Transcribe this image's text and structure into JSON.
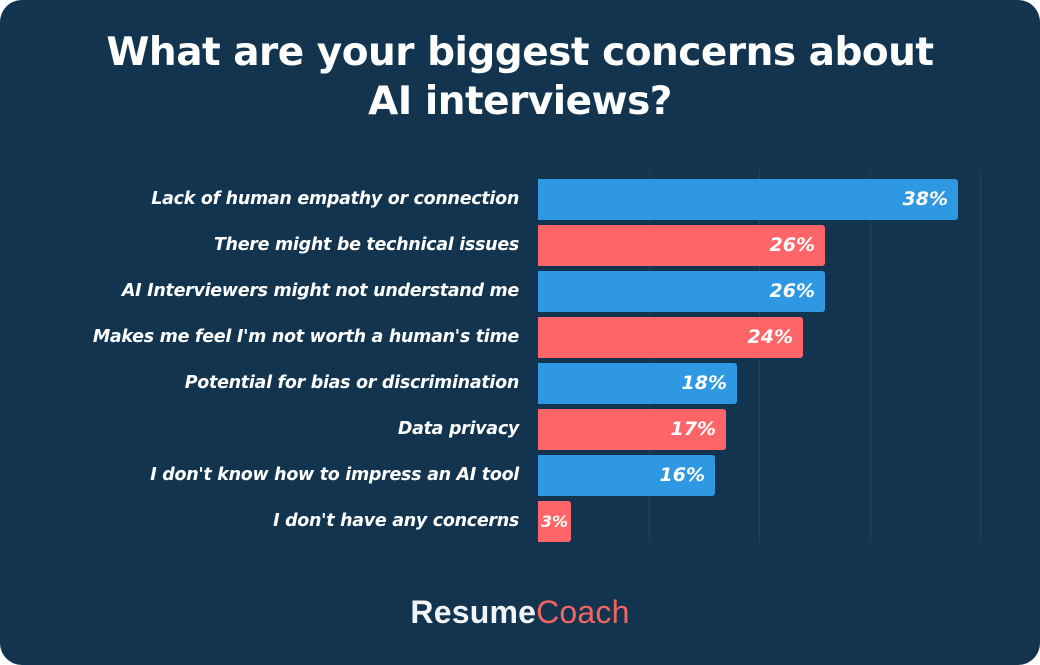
{
  "title": {
    "line1": "What are your biggest concerns about",
    "line2": "AI interviews?"
  },
  "colors": {
    "background": "#12344f",
    "blue": "#2f98e3",
    "red": "#fd6569",
    "gridline": "#1f4563"
  },
  "logo": {
    "part1": "Resume",
    "part2": "Coach"
  },
  "chart_data": {
    "type": "bar",
    "orientation": "horizontal",
    "title": "What are your biggest concerns about AI interviews?",
    "xlabel": "",
    "ylabel": "",
    "xlim": [
      0,
      40
    ],
    "grid": "vertical gridlines every 10%",
    "legend": "none",
    "categories": [
      "Lack of human empathy or connection",
      "There might be technical issues",
      "AI Interviewers might not understand me",
      "Makes me feel I'm not worth a human's time",
      "Potential for bias or discrimination",
      "Data privacy",
      "I don't know how to impress an AI tool",
      "I don't have any concerns"
    ],
    "values": [
      38,
      26,
      26,
      24,
      18,
      17,
      16,
      3
    ],
    "value_labels": [
      "38%",
      "26%",
      "26%",
      "24%",
      "18%",
      "17%",
      "16%",
      "3%"
    ],
    "bar_colors": [
      "blue",
      "red",
      "blue",
      "red",
      "blue",
      "red",
      "blue",
      "red"
    ],
    "units": "%"
  }
}
